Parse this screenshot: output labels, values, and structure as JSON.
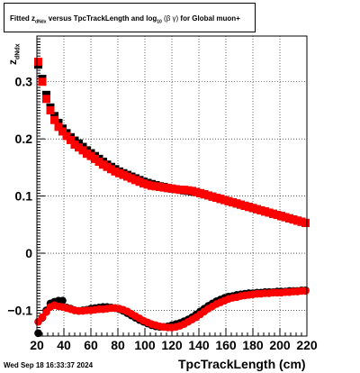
{
  "title": {
    "prefix": "Fitted",
    "z": "z",
    "z_sub": "dNdx",
    "middle": "versus TpcTrackLength and log",
    "log_sub": "10",
    "beta_gamma": "(β γ)",
    "suffix": "for Global muon+"
  },
  "footer_timestamp": "Wed Sep 18 16:33:37 2024",
  "chart_data": {
    "type": "scatter",
    "xlabel": "TpcTrackLength (cm)",
    "ylabel": "z",
    "ylabel_sub": "dNdx",
    "xlim": [
      20,
      220
    ],
    "ylim": [
      -0.145,
      0.38
    ],
    "grid": true,
    "xticks": [
      20,
      40,
      60,
      80,
      100,
      120,
      140,
      160,
      180,
      200,
      220
    ],
    "yticks": [
      -0.1,
      0,
      0.1,
      0.2,
      0.3
    ],
    "ytick_labels": [
      "−0.1",
      "0",
      "0.1",
      "0.2",
      "0.3"
    ],
    "series": [
      {
        "color": "#000000",
        "marker": "square",
        "x": [
          21,
          24,
          27,
          30,
          33,
          36,
          39,
          42,
          45,
          48,
          51,
          54,
          57,
          60,
          63,
          66,
          69,
          72,
          75,
          78,
          81,
          84,
          87,
          90,
          93,
          96,
          99,
          102,
          105,
          108,
          111,
          114,
          117,
          120,
          123,
          126,
          129,
          132,
          135,
          138,
          141,
          144,
          147,
          150,
          153,
          156,
          159,
          162,
          165,
          168,
          171,
          174,
          177,
          180,
          183,
          186,
          189,
          192,
          195,
          198,
          201,
          204,
          207,
          210,
          213,
          216,
          219
        ],
        "y": [
          0.33,
          0.305,
          0.277,
          0.255,
          0.24,
          0.228,
          0.218,
          0.21,
          0.203,
          0.197,
          0.192,
          0.186,
          0.18,
          0.175,
          0.17,
          0.165,
          0.16,
          0.155,
          0.151,
          0.147,
          0.143,
          0.14,
          0.137,
          0.134,
          0.131,
          0.128,
          0.125,
          0.123,
          0.121,
          0.119,
          0.117,
          0.116,
          0.114,
          0.113,
          0.112,
          0.111,
          0.11,
          0.109,
          0.108,
          0.107,
          0.105,
          0.103,
          0.101,
          0.099,
          0.097,
          0.095,
          0.093,
          0.091,
          0.089,
          0.087,
          0.085,
          0.083,
          0.081,
          0.079,
          0.077,
          0.075,
          0.073,
          0.071,
          0.069,
          0.067,
          0.065,
          0.063,
          0.061,
          0.059,
          0.057,
          0.055,
          0.053
        ]
      },
      {
        "color": "#ff0000",
        "marker": "square",
        "x": [
          21,
          24,
          27,
          30,
          33,
          36,
          39,
          42,
          45,
          48,
          51,
          54,
          57,
          60,
          63,
          66,
          69,
          72,
          75,
          78,
          81,
          84,
          87,
          90,
          93,
          96,
          99,
          102,
          105,
          108,
          111,
          114,
          117,
          120,
          123,
          126,
          129,
          132,
          135,
          138,
          141,
          144,
          147,
          150,
          153,
          156,
          159,
          162,
          165,
          168,
          171,
          174,
          177,
          180,
          183,
          186,
          189,
          192,
          195,
          198,
          201,
          204,
          207,
          210,
          213,
          216,
          219
        ],
        "y": [
          0.335,
          0.3,
          0.27,
          0.25,
          0.233,
          0.221,
          0.213,
          0.205,
          0.198,
          0.19,
          0.185,
          0.18,
          0.174,
          0.17,
          0.165,
          0.16,
          0.155,
          0.151,
          0.147,
          0.143,
          0.14,
          0.137,
          0.134,
          0.131,
          0.128,
          0.125,
          0.122,
          0.12,
          0.118,
          0.117,
          0.116,
          0.115,
          0.114,
          0.113,
          0.112,
          0.111,
          0.111,
          0.11,
          0.109,
          0.107,
          0.105,
          0.103,
          0.101,
          0.099,
          0.097,
          0.095,
          0.093,
          0.091,
          0.089,
          0.087,
          0.085,
          0.083,
          0.081,
          0.079,
          0.077,
          0.075,
          0.073,
          0.071,
          0.069,
          0.067,
          0.065,
          0.063,
          0.061,
          0.059,
          0.057,
          0.055,
          0.053
        ]
      },
      {
        "color": "#000000",
        "marker": "circle",
        "x": [
          21,
          24,
          27,
          30,
          33,
          36,
          39,
          42,
          45,
          48,
          51,
          54,
          57,
          60,
          63,
          66,
          69,
          72,
          75,
          78,
          81,
          84,
          87,
          90,
          93,
          96,
          99,
          102,
          105,
          108,
          111,
          114,
          117,
          120,
          123,
          126,
          129,
          132,
          135,
          138,
          141,
          144,
          147,
          150,
          153,
          156,
          159,
          162,
          165,
          168,
          171,
          174,
          177,
          180,
          183,
          186,
          189,
          192,
          195,
          198,
          201,
          204,
          207,
          210,
          213,
          216,
          219
        ],
        "y": [
          -0.14,
          -0.113,
          -0.1,
          -0.088,
          -0.085,
          -0.083,
          -0.083,
          -0.095,
          -0.097,
          -0.1,
          -0.101,
          -0.1,
          -0.099,
          -0.097,
          -0.096,
          -0.095,
          -0.094,
          -0.094,
          -0.095,
          -0.096,
          -0.098,
          -0.101,
          -0.105,
          -0.109,
          -0.113,
          -0.117,
          -0.12,
          -0.123,
          -0.126,
          -0.128,
          -0.129,
          -0.129,
          -0.128,
          -0.126,
          -0.124,
          -0.122,
          -0.119,
          -0.116,
          -0.112,
          -0.107,
          -0.102,
          -0.097,
          -0.092,
          -0.088,
          -0.084,
          -0.081,
          -0.078,
          -0.076,
          -0.075,
          -0.073,
          -0.072,
          -0.071,
          -0.07,
          -0.07,
          -0.069,
          -0.069,
          -0.068,
          -0.068,
          -0.068,
          -0.067,
          -0.067,
          -0.067,
          -0.066,
          -0.066,
          -0.066,
          -0.065,
          -0.065
        ]
      },
      {
        "color": "#ff0000",
        "marker": "circle",
        "x": [
          21,
          24,
          27,
          30,
          33,
          36,
          39,
          42,
          45,
          48,
          51,
          54,
          57,
          60,
          63,
          66,
          69,
          72,
          75,
          78,
          81,
          84,
          87,
          90,
          93,
          96,
          99,
          102,
          105,
          108,
          111,
          114,
          117,
          120,
          123,
          126,
          129,
          132,
          135,
          138,
          141,
          144,
          147,
          150,
          153,
          156,
          159,
          162,
          165,
          168,
          171,
          174,
          177,
          180,
          183,
          186,
          189,
          192,
          195,
          198,
          201,
          204,
          207,
          210,
          213,
          216,
          219
        ],
        "y": [
          -0.12,
          -0.112,
          -0.103,
          -0.094,
          -0.091,
          -0.093,
          -0.094,
          -0.096,
          -0.098,
          -0.1,
          -0.101,
          -0.101,
          -0.1,
          -0.1,
          -0.099,
          -0.098,
          -0.098,
          -0.097,
          -0.096,
          -0.096,
          -0.097,
          -0.099,
          -0.102,
          -0.106,
          -0.11,
          -0.114,
          -0.118,
          -0.121,
          -0.124,
          -0.126,
          -0.128,
          -0.129,
          -0.13,
          -0.13,
          -0.129,
          -0.127,
          -0.124,
          -0.12,
          -0.116,
          -0.112,
          -0.107,
          -0.102,
          -0.097,
          -0.093,
          -0.089,
          -0.086,
          -0.083,
          -0.08,
          -0.078,
          -0.077,
          -0.075,
          -0.074,
          -0.073,
          -0.072,
          -0.071,
          -0.071,
          -0.07,
          -0.07,
          -0.069,
          -0.069,
          -0.069,
          -0.068,
          -0.068,
          -0.067,
          -0.067,
          -0.066,
          -0.066
        ]
      }
    ]
  }
}
